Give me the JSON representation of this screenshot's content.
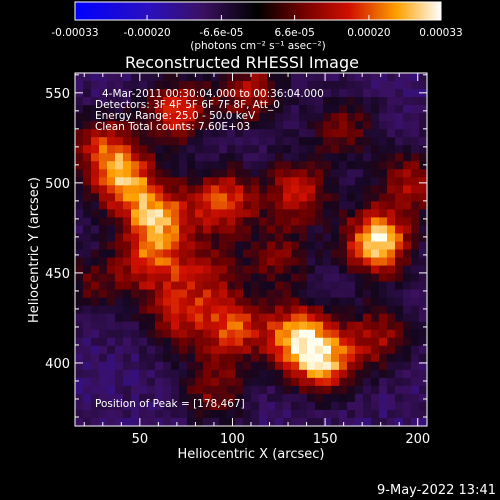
{
  "colorbar": {
    "ticks": [
      "-0.00033",
      "-0.00020",
      "-6.6e-05",
      "6.6e-05",
      "0.00020",
      "0.00033"
    ],
    "tick_values": [
      -0.00033,
      -0.0002,
      -6.6e-05,
      6.6e-05,
      0.0002,
      0.00033
    ],
    "range": [
      -0.00033,
      0.00033
    ],
    "unit_label": "(photons cm⁻² s⁻¹ asec⁻²)"
  },
  "chart_data": {
    "type": "heatmap",
    "title": "Reconstructed RHESSI Image",
    "xlabel": "Heliocentric X (arcsec)",
    "ylabel": "Heliocentric Y (arcsec)",
    "xlim": [
      15,
      205
    ],
    "ylim": [
      365,
      561
    ],
    "x_ticks": [
      50,
      100,
      150,
      200
    ],
    "y_ticks": [
      400,
      450,
      500,
      550
    ],
    "annotations": [
      "4-Mar-2011 00:30:04.000 to 00:36:04.000",
      "Detectors: 3F 4F 5F 6F 7F 8F, Att_0",
      "Energy Range: 25.0 - 50.0 keV",
      "Clean   Total counts: 7.60E+03"
    ],
    "peak_label": "Position of Peak = [178,467]",
    "peak": [
      178,
      467
    ],
    "sources": [
      {
        "x": 178,
        "y": 467,
        "intensity": 1.0
      },
      {
        "x": 60,
        "y": 480,
        "intensity": 0.75
      },
      {
        "x": 95,
        "y": 490,
        "intensity": 0.7
      },
      {
        "x": 135,
        "y": 495,
        "intensity": 0.6
      },
      {
        "x": 42,
        "y": 500,
        "intensity": 0.7
      },
      {
        "x": 30,
        "y": 520,
        "intensity": 0.6
      },
      {
        "x": 70,
        "y": 540,
        "intensity": 0.65
      },
      {
        "x": 110,
        "y": 550,
        "intensity": 0.55
      },
      {
        "x": 135,
        "y": 415,
        "intensity": 0.8
      },
      {
        "x": 150,
        "y": 400,
        "intensity": 0.75
      },
      {
        "x": 100,
        "y": 420,
        "intensity": 0.65
      },
      {
        "x": 70,
        "y": 425,
        "intensity": 0.5
      },
      {
        "x": 55,
        "y": 455,
        "intensity": 0.55
      },
      {
        "x": 85,
        "y": 450,
        "intensity": 0.45
      },
      {
        "x": 180,
        "y": 415,
        "intensity": 0.5
      },
      {
        "x": 195,
        "y": 500,
        "intensity": 0.5
      },
      {
        "x": 160,
        "y": 530,
        "intensity": 0.4
      },
      {
        "x": 25,
        "y": 445,
        "intensity": 0.35
      },
      {
        "x": 125,
        "y": 458,
        "intensity": 0.4
      },
      {
        "x": 90,
        "y": 385,
        "intensity": 0.45
      }
    ]
  },
  "footer": {
    "timestamp": "9-May-2022 13:41"
  }
}
